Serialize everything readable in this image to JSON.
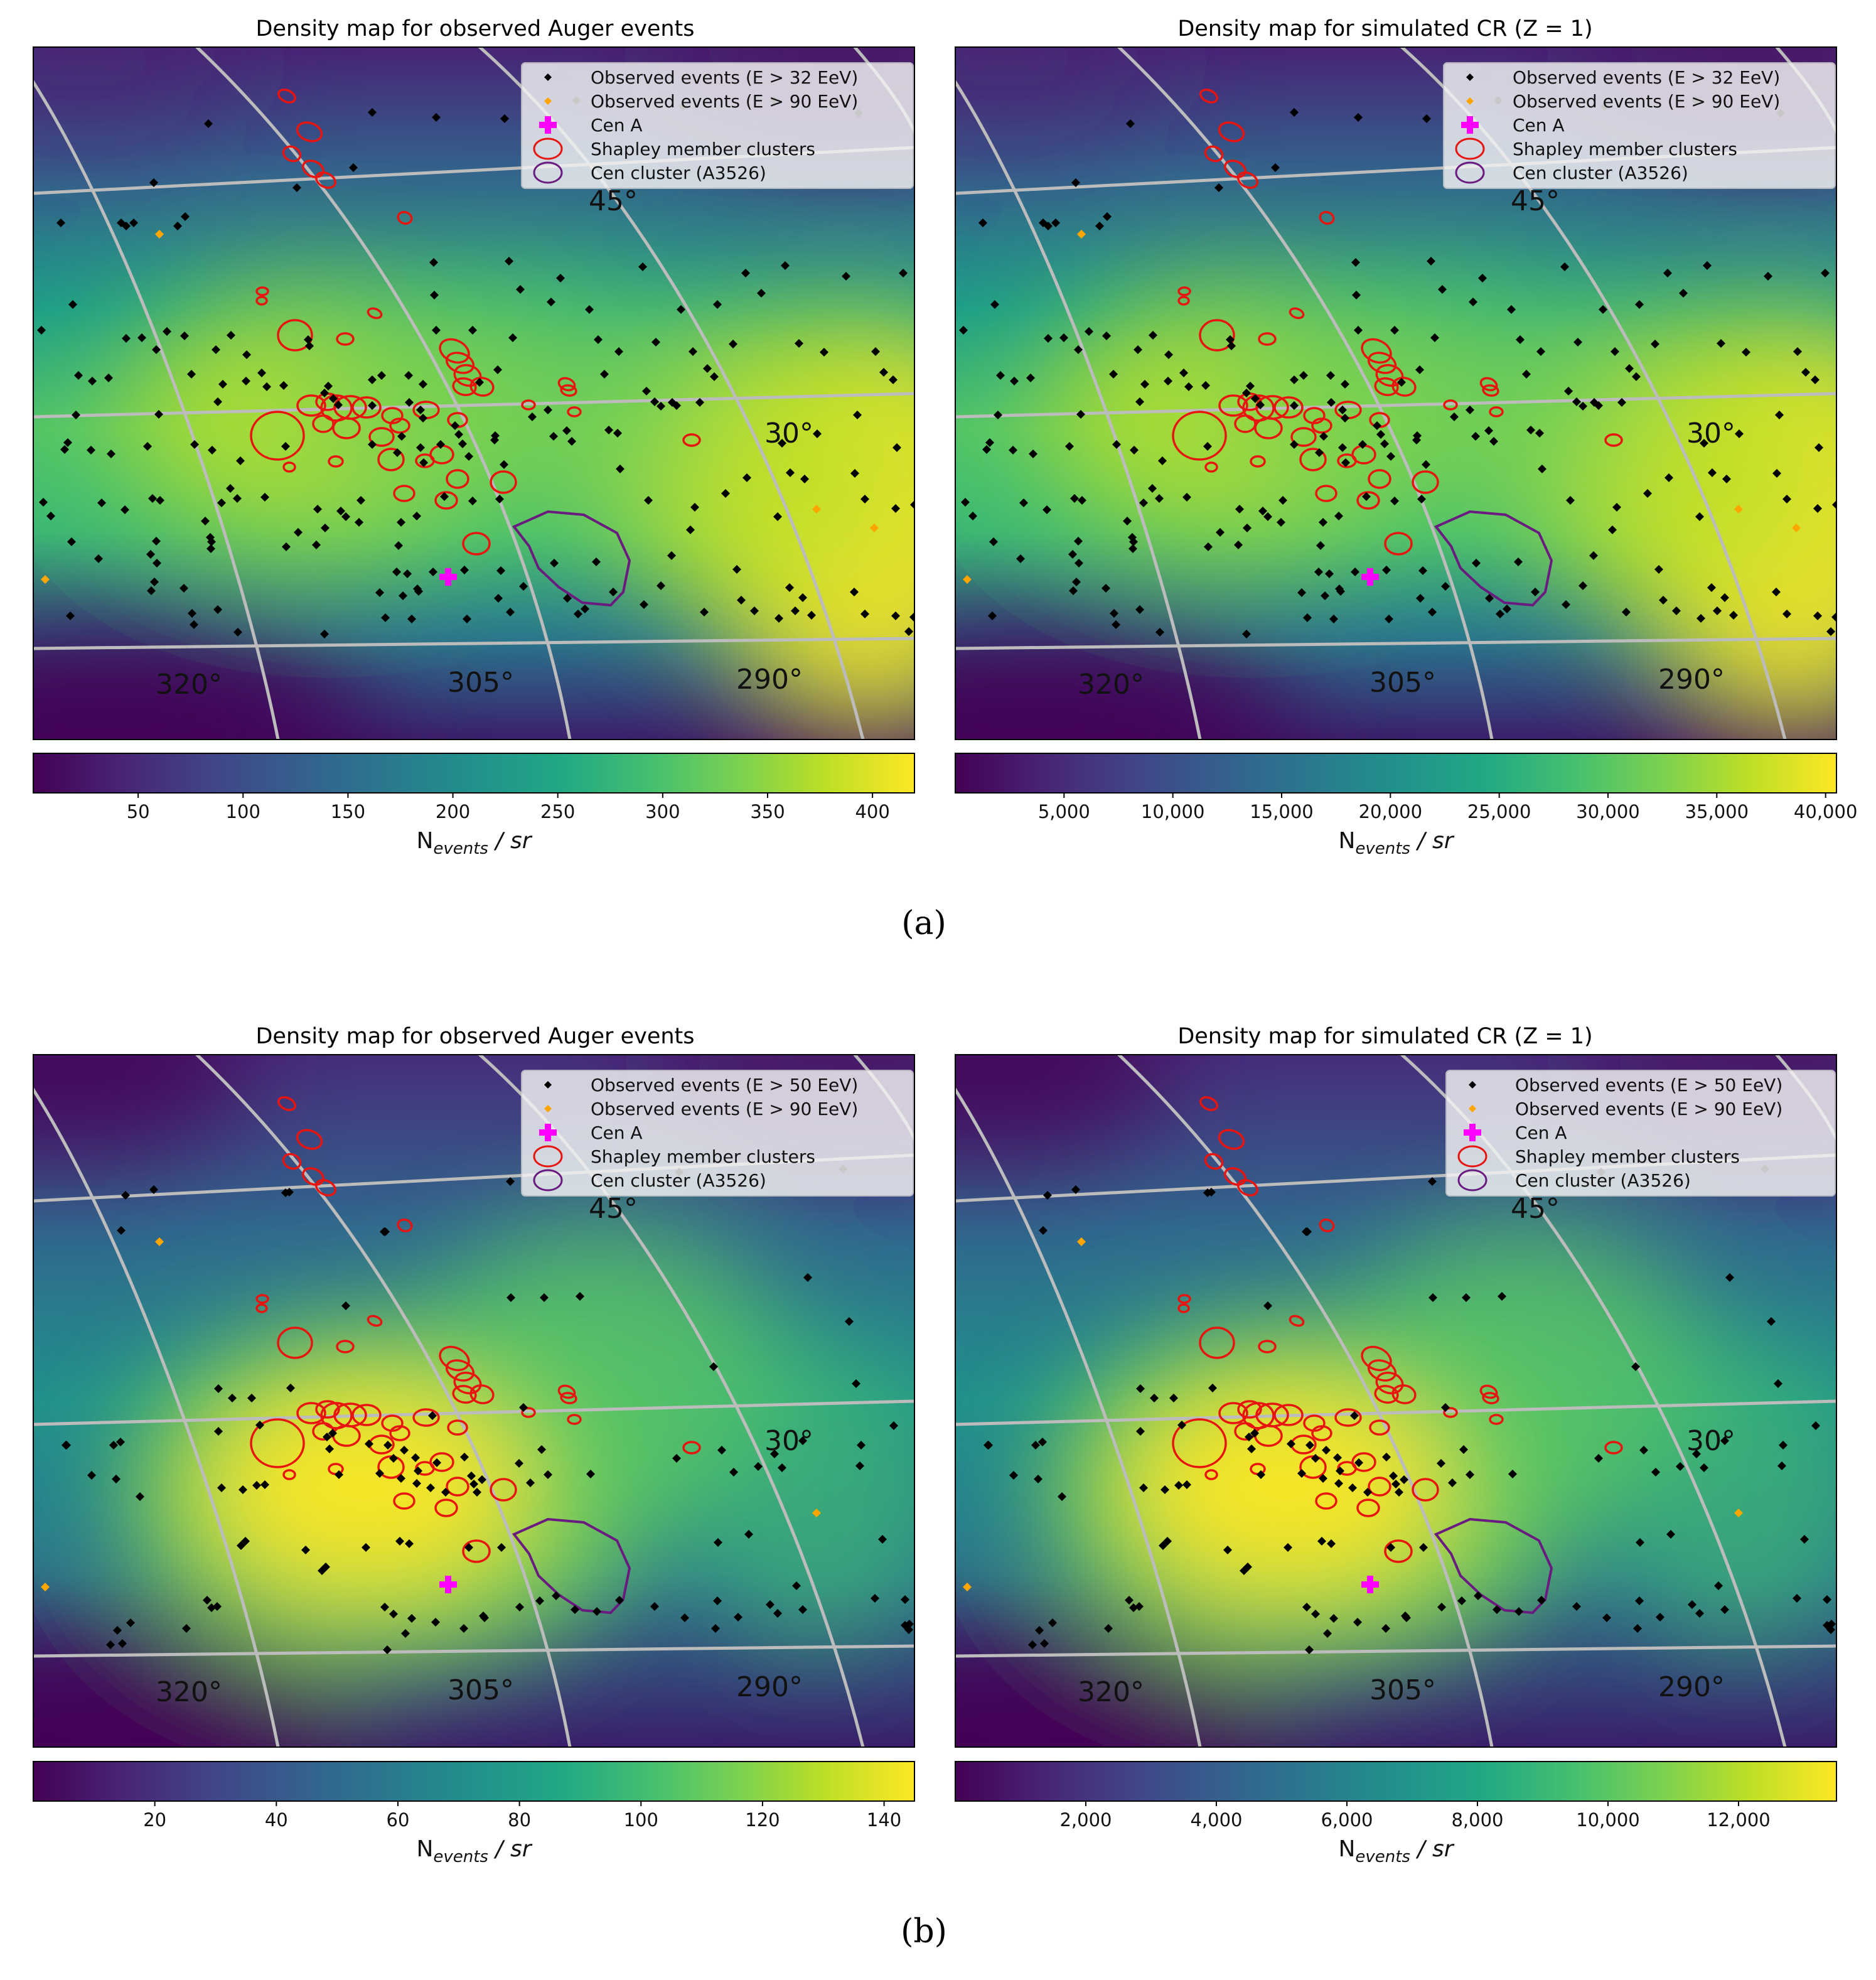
{
  "figure": {
    "panel_labels": [
      "(a)",
      "(b)"
    ]
  },
  "colors": {
    "viridis": [
      "#440154",
      "#482475",
      "#414487",
      "#355f8d",
      "#2a788e",
      "#21918c",
      "#22a884",
      "#44bf70",
      "#7ad151",
      "#bddf26",
      "#fde725"
    ],
    "observed_marker": "#000000",
    "observed_high_marker": "#ffa500",
    "cen_a_marker": "#ff00ff",
    "shapley_ellipse": "#e8140f",
    "cen_cluster_ellipse": "#6a1b7f",
    "graticule": "#bcbcbc"
  },
  "graticule_labels": {
    "longitudes": [
      "320°",
      "305°",
      "290°"
    ],
    "latitudes": [
      "45°",
      "30°"
    ]
  },
  "chart_data": [
    {
      "type": "heatmap",
      "row": "a",
      "title": "Density map for observed Auger events",
      "colorbar_label_main": "N",
      "colorbar_label_sub": "events",
      "colorbar_label_unit": " / sr",
      "colorbar_range": [
        0,
        420
      ],
      "colorbar_ticks": [
        50,
        100,
        150,
        200,
        250,
        300,
        350,
        400
      ],
      "colorbar_tick_labels": [
        "50",
        "100",
        "150",
        "200",
        "250",
        "300",
        "350",
        "400"
      ],
      "legend": [
        "Observed events (E > 32 EeV)",
        "Observed events (E > 90 EeV)",
        "Cen A",
        "Shapley member clusters",
        "Cen cluster (A3526)"
      ],
      "density_model": "band"
    },
    {
      "type": "heatmap",
      "row": "a",
      "title": "Density map for simulated CR (Z = 1)",
      "colorbar_label_main": "N",
      "colorbar_label_sub": "events",
      "colorbar_label_unit": " / sr",
      "colorbar_range": [
        0,
        40500
      ],
      "colorbar_ticks": [
        5000,
        10000,
        15000,
        20000,
        25000,
        30000,
        35000,
        40000
      ],
      "colorbar_tick_labels": [
        "5,000",
        "10,000",
        "15,000",
        "20,000",
        "25,000",
        "30,000",
        "35,000",
        "40,000"
      ],
      "legend": [
        "Observed events (E > 32 EeV)",
        "Observed events (E > 90 EeV)",
        "Cen A",
        "Shapley member clusters",
        "Cen cluster (A3526)"
      ],
      "density_model": "band"
    },
    {
      "type": "heatmap",
      "row": "b",
      "title": "Density map for observed Auger events",
      "colorbar_label_main": "N",
      "colorbar_label_sub": "events",
      "colorbar_label_unit": " / sr",
      "colorbar_range": [
        0,
        145
      ],
      "colorbar_ticks": [
        20,
        40,
        60,
        80,
        100,
        120,
        140
      ],
      "colorbar_tick_labels": [
        "20",
        "40",
        "60",
        "80",
        "100",
        "120",
        "140"
      ],
      "legend": [
        "Observed events (E > 50 EeV)",
        "Observed events (E > 90 EeV)",
        "Cen A",
        "Shapley member clusters",
        "Cen cluster (A3526)"
      ],
      "density_model": "blob"
    },
    {
      "type": "heatmap",
      "row": "b",
      "title": "Density map for simulated CR (Z = 1)",
      "colorbar_label_main": "N",
      "colorbar_label_sub": "events",
      "colorbar_label_unit": " / sr",
      "colorbar_range": [
        0,
        13500
      ],
      "colorbar_ticks": [
        2000,
        4000,
        6000,
        8000,
        10000,
        12000
      ],
      "colorbar_tick_labels": [
        "2,000",
        "4,000",
        "6,000",
        "8,000",
        "10,000",
        "12,000"
      ],
      "legend": [
        "Observed events (E > 50 EeV)",
        "Observed events (E > 90 EeV)",
        "Cen A",
        "Shapley member clusters",
        "Cen cluster (A3526)"
      ],
      "density_model": "blob"
    }
  ]
}
